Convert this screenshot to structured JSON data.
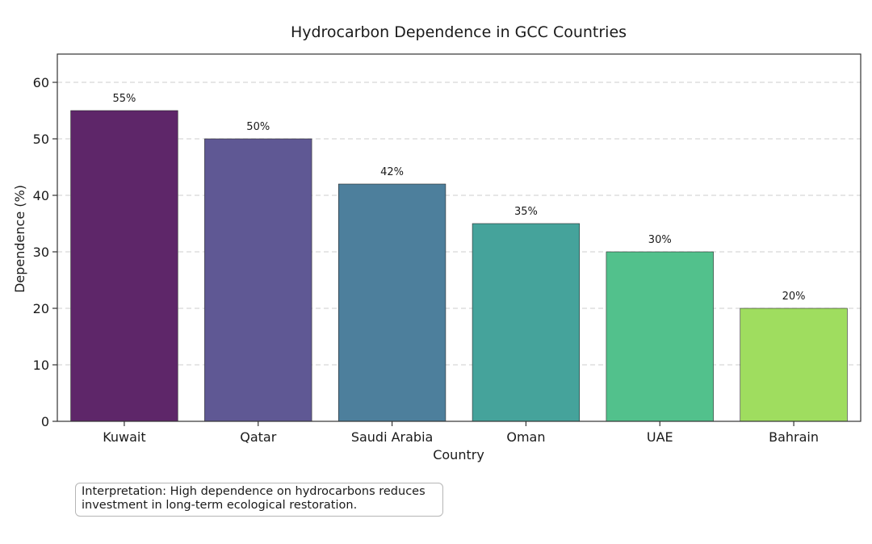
{
  "chart_data": {
    "type": "bar",
    "title": "Hydrocarbon Dependence in GCC Countries",
    "xlabel": "Country",
    "ylabel": "Dependence (%)",
    "categories": [
      "Kuwait",
      "Qatar",
      "Saudi Arabia",
      "Oman",
      "UAE",
      "Bahrain"
    ],
    "values": [
      55,
      50,
      42,
      35,
      30,
      20
    ],
    "data_labels": [
      "55%",
      "50%",
      "42%",
      "35%",
      "30%",
      "20%"
    ],
    "colors": [
      "#5e2669",
      "#5f5894",
      "#4d7f9c",
      "#45a39b",
      "#52c18c",
      "#9fdd5f"
    ],
    "ylim": [
      0,
      65
    ],
    "yticks": [
      0,
      10,
      20,
      30,
      40,
      50,
      60
    ],
    "grid": "y-dashed",
    "legend": "none"
  },
  "annotation": {
    "line1": "Interpretation: High dependence on hydrocarbons reduces",
    "line2": "investment in long-term ecological restoration."
  }
}
